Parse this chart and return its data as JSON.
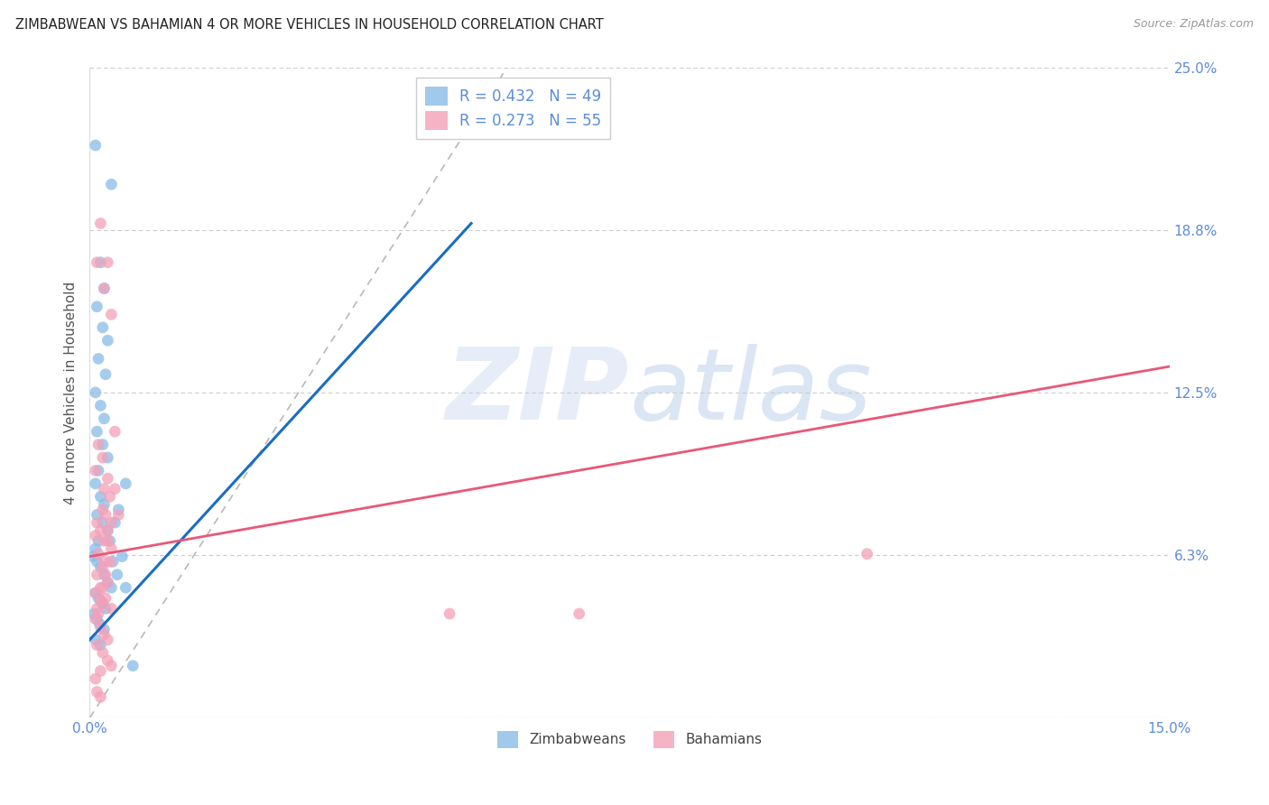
{
  "title": "ZIMBABWEAN VS BAHAMIAN 4 OR MORE VEHICLES IN HOUSEHOLD CORRELATION CHART",
  "source": "Source: ZipAtlas.com",
  "ylabel": "4 or more Vehicles in Household",
  "xlim": [
    0.0,
    0.15
  ],
  "ylim": [
    0.0,
    0.25
  ],
  "xtick_positions": [
    0.0,
    0.03,
    0.06,
    0.09,
    0.12,
    0.15
  ],
  "xtick_labels": [
    "0.0%",
    "",
    "",
    "",
    "",
    "15.0%"
  ],
  "ytick_right_positions": [
    0.0,
    0.0625,
    0.125,
    0.1875,
    0.25
  ],
  "ytick_right_labels": [
    "",
    "6.3%",
    "12.5%",
    "18.8%",
    "25.0%"
  ],
  "grid_yticks": [
    0.0,
    0.0625,
    0.125,
    0.1875,
    0.25
  ],
  "legend_label1": "R = 0.432   N = 49",
  "legend_label2": "R = 0.273   N = 55",
  "zim_color": "#88bce8",
  "bah_color": "#f4a0b8",
  "zim_line_color": "#1a6dc2",
  "bah_line_color": "#e85878",
  "tick_label_color": "#5b8dd9",
  "background_color": "#ffffff",
  "bottom_legend_labels": [
    "Zimbabweans",
    "Bahamians"
  ],
  "zim_x": [
    0.0008,
    0.003,
    0.0015,
    0.002,
    0.001,
    0.0018,
    0.0025,
    0.0012,
    0.0022,
    0.0008,
    0.0015,
    0.002,
    0.001,
    0.0018,
    0.0025,
    0.0012,
    0.0008,
    0.0015,
    0.002,
    0.001,
    0.0018,
    0.0025,
    0.0012,
    0.0008,
    0.0005,
    0.001,
    0.0015,
    0.002,
    0.0025,
    0.003,
    0.0008,
    0.0012,
    0.0018,
    0.0022,
    0.0006,
    0.001,
    0.0014,
    0.002,
    0.0008,
    0.0015,
    0.005,
    0.004,
    0.0035,
    0.0045,
    0.0028,
    0.0032,
    0.0038,
    0.005,
    0.006
  ],
  "zim_y": [
    0.22,
    0.205,
    0.175,
    0.165,
    0.158,
    0.15,
    0.145,
    0.138,
    0.132,
    0.125,
    0.12,
    0.115,
    0.11,
    0.105,
    0.1,
    0.095,
    0.09,
    0.085,
    0.082,
    0.078,
    0.075,
    0.072,
    0.068,
    0.065,
    0.062,
    0.06,
    0.058,
    0.055,
    0.052,
    0.05,
    0.048,
    0.046,
    0.044,
    0.042,
    0.04,
    0.038,
    0.036,
    0.034,
    0.03,
    0.028,
    0.09,
    0.08,
    0.075,
    0.062,
    0.068,
    0.06,
    0.055,
    0.05,
    0.02
  ],
  "bah_x": [
    0.001,
    0.002,
    0.0015,
    0.003,
    0.0025,
    0.0008,
    0.0018,
    0.0025,
    0.0012,
    0.002,
    0.0035,
    0.0028,
    0.0018,
    0.0022,
    0.001,
    0.0015,
    0.0008,
    0.0025,
    0.003,
    0.0012,
    0.002,
    0.0018,
    0.001,
    0.0025,
    0.0015,
    0.0008,
    0.0022,
    0.0018,
    0.003,
    0.0012,
    0.0008,
    0.0015,
    0.002,
    0.0025,
    0.001,
    0.0018,
    0.0025,
    0.003,
    0.0015,
    0.0008,
    0.0035,
    0.004,
    0.003,
    0.0025,
    0.002,
    0.0015,
    0.001,
    0.0028,
    0.0022,
    0.0018,
    0.068,
    0.05,
    0.108,
    0.001,
    0.0015
  ],
  "bah_y": [
    0.175,
    0.165,
    0.19,
    0.155,
    0.175,
    0.095,
    0.1,
    0.092,
    0.105,
    0.088,
    0.11,
    0.085,
    0.08,
    0.078,
    0.075,
    0.072,
    0.07,
    0.068,
    0.065,
    0.063,
    0.06,
    0.058,
    0.055,
    0.052,
    0.05,
    0.048,
    0.046,
    0.044,
    0.042,
    0.04,
    0.038,
    0.035,
    0.032,
    0.03,
    0.028,
    0.025,
    0.022,
    0.02,
    0.018,
    0.015,
    0.088,
    0.078,
    0.075,
    0.072,
    0.068,
    0.045,
    0.042,
    0.06,
    0.055,
    0.05,
    0.04,
    0.04,
    0.063,
    0.01,
    0.008
  ],
  "zim_line_x": [
    0.0,
    0.053
  ],
  "zim_line_y": [
    0.03,
    0.19
  ],
  "bah_line_x": [
    0.0,
    0.15
  ],
  "bah_line_y": [
    0.062,
    0.135
  ],
  "diag_line_x": [
    0.0,
    0.058
  ],
  "diag_line_y": [
    0.0,
    0.25
  ]
}
